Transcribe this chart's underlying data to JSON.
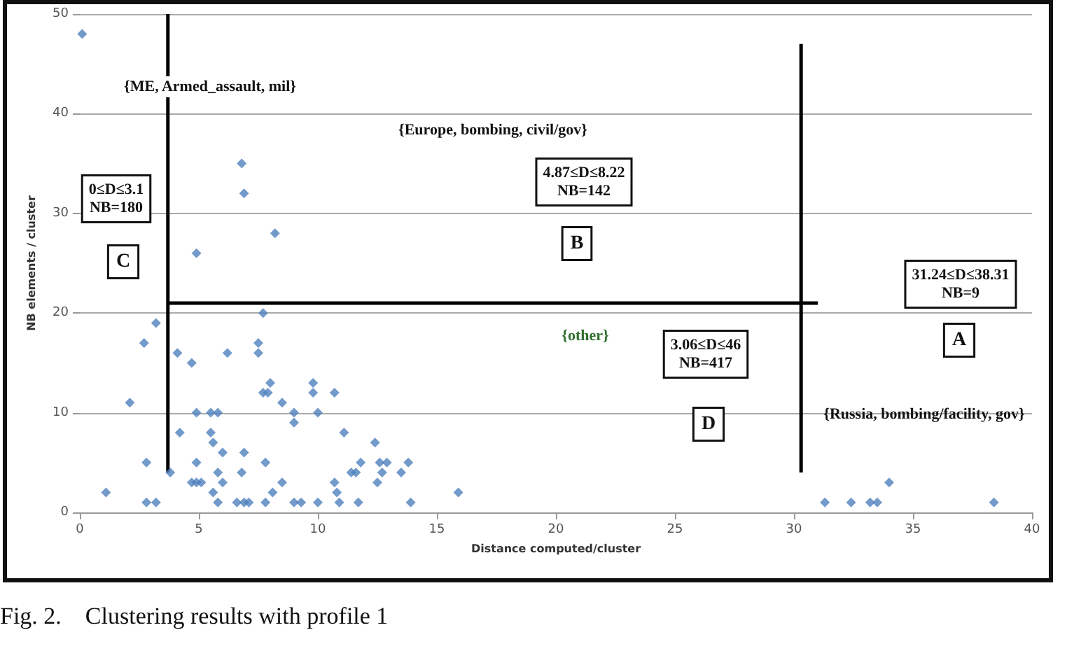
{
  "chart_data": {
    "type": "scatter",
    "xlabel": "Distance computed/cluster",
    "ylabel": "NB elements / cluster",
    "xlim": [
      0,
      40
    ],
    "xticks": [
      0,
      5,
      10,
      15,
      20,
      25,
      30,
      35,
      40
    ],
    "ylim": [
      0,
      50
    ],
    "yticks": [
      0,
      10,
      20,
      30,
      40,
      50
    ],
    "grid": "y",
    "series": [
      {
        "marker": "diamond",
        "color": "#4f81bd",
        "x": [
          0.1,
          1.1,
          2.1,
          2.7,
          2.8,
          2.8,
          3.2,
          3.2,
          3.8,
          4.1,
          4.2,
          4.7,
          4.7,
          4.9,
          5.1,
          4.9,
          4.9,
          4.9,
          5.5,
          5.8,
          5.5,
          5.6,
          6.0,
          5.6,
          5.8,
          5.8,
          6.0,
          6.2,
          6.6,
          6.9,
          7.1,
          6.8,
          6.9,
          6.8,
          6.9,
          7.5,
          7.5,
          7.7,
          7.7,
          7.9,
          8.0,
          7.8,
          7.8,
          8.1,
          8.2,
          8.5,
          8.5,
          9.0,
          9.0,
          9.0,
          9.3,
          9.8,
          9.8,
          10.0,
          10.0,
          10.7,
          10.7,
          10.8,
          10.9,
          11.1,
          11.4,
          11.6,
          11.8,
          11.7,
          12.4,
          12.5,
          12.6,
          12.9,
          12.7,
          13.5,
          13.8,
          13.9,
          15.9,
          31.3,
          32.4,
          33.2,
          33.5,
          34.0,
          38.4
        ],
        "values": [
          48,
          2,
          11,
          17,
          5,
          1,
          1,
          19,
          4,
          16,
          8,
          15,
          3,
          3,
          3,
          5,
          10,
          26,
          10,
          10,
          8,
          7,
          6,
          2,
          4,
          1,
          3,
          16,
          1,
          1,
          1,
          4,
          6,
          35,
          32,
          17,
          16,
          20,
          12,
          12,
          13,
          5,
          1,
          2,
          28,
          11,
          3,
          10,
          9,
          1,
          1,
          13,
          12,
          10,
          1,
          12,
          3,
          2,
          1,
          8,
          4,
          4,
          5,
          1,
          7,
          3,
          5,
          5,
          4,
          4,
          5,
          1,
          2,
          1,
          1,
          1,
          1,
          3,
          1
        ]
      },
      {
        "type": "line",
        "marker": "none",
        "color": "#000000",
        "x": [
          3.7,
          3.7
        ],
        "values": [
          4,
          50
        ]
      },
      {
        "type": "line",
        "marker": "none",
        "color": "#000000",
        "x": [
          3.7,
          31.0
        ],
        "values": [
          21,
          21
        ]
      },
      {
        "type": "line",
        "marker": "none",
        "color": "#000000",
        "x": [
          30.3,
          30.3
        ],
        "values": [
          47,
          4
        ]
      }
    ],
    "annotations": [
      "{ME, Armed_assault, mil}",
      "{Europe, bombing, civil/gov}",
      "0≤D≤3.1\nNB=180",
      "C",
      "4.87≤D≤8.22\nNB=142",
      "B",
      "{other}",
      "3.06≤D≤46\nNB=417",
      "D",
      "31.24≤D≤38.31\nNB=9",
      "A",
      "{Russia, bombing/facility, gov}",
      "Fig. 2.    Clustering results with profile 1"
    ]
  }
}
